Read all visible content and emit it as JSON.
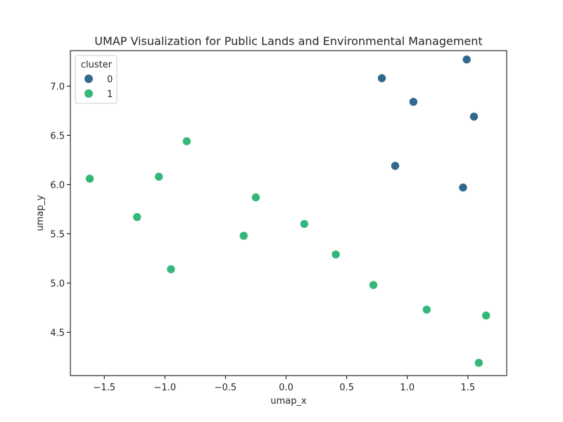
{
  "chart_data": {
    "type": "scatter",
    "title": "UMAP Visualization for Public Lands and Environmental Management",
    "xlabel": "umap_x",
    "ylabel": "umap_y",
    "xlim": [
      -1.78,
      1.82
    ],
    "ylim": [
      4.06,
      7.36
    ],
    "xticks": [
      -1.5,
      -1.0,
      -0.5,
      0.0,
      0.5,
      1.0,
      1.5
    ],
    "xtick_labels": [
      "−1.5",
      "−1.0",
      "−0.5",
      "0.0",
      "0.5",
      "1.0",
      "1.5"
    ],
    "yticks": [
      4.5,
      5.0,
      5.5,
      6.0,
      6.5,
      7.0
    ],
    "ytick_labels": [
      "4.5",
      "5.0",
      "5.5",
      "6.0",
      "6.5",
      "7.0"
    ],
    "grid": false,
    "legend": {
      "title": "cluster",
      "placement": "top-left"
    },
    "series": [
      {
        "name": "0",
        "color": "#31688e",
        "points": [
          {
            "x": 1.49,
            "y": 7.27
          },
          {
            "x": 0.79,
            "y": 7.08
          },
          {
            "x": 1.05,
            "y": 6.84
          },
          {
            "x": 1.55,
            "y": 6.69
          },
          {
            "x": 0.9,
            "y": 6.19
          },
          {
            "x": 1.46,
            "y": 5.97
          }
        ]
      },
      {
        "name": "1",
        "color": "#35b779",
        "points": [
          {
            "x": -0.82,
            "y": 6.44
          },
          {
            "x": -1.62,
            "y": 6.06
          },
          {
            "x": -1.05,
            "y": 6.08
          },
          {
            "x": -1.23,
            "y": 5.67
          },
          {
            "x": -0.25,
            "y": 5.87
          },
          {
            "x": -0.35,
            "y": 5.48
          },
          {
            "x": 0.15,
            "y": 5.6
          },
          {
            "x": -0.95,
            "y": 5.14
          },
          {
            "x": 0.41,
            "y": 5.29
          },
          {
            "x": 0.72,
            "y": 4.98
          },
          {
            "x": 1.16,
            "y": 4.73
          },
          {
            "x": 1.65,
            "y": 4.67
          },
          {
            "x": 1.59,
            "y": 4.19
          }
        ]
      }
    ]
  }
}
